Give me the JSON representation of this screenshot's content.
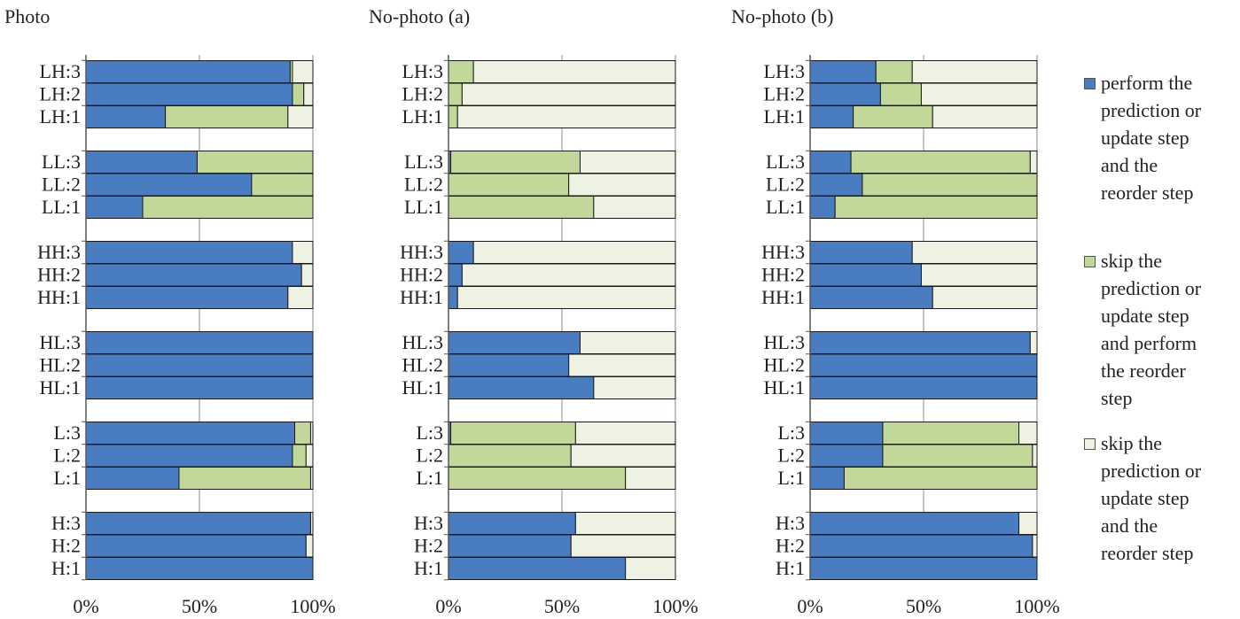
{
  "chart_data": [
    {
      "type": "bar",
      "stacked": true,
      "orientation": "horizontal",
      "title": "Photo",
      "categories": [
        "H:1",
        "H:2",
        "H:3",
        "L:1",
        "L:2",
        "L:3",
        "HL:1",
        "HL:2",
        "HL:3",
        "HH:1",
        "HH:2",
        "HH:3",
        "LL:1",
        "LL:2",
        "LL:3",
        "LH:1",
        "LH:2",
        "LH:3"
      ],
      "series": [
        {
          "name": "perform the prediction or update step and the reorder step",
          "values": [
            100,
            97,
            99,
            41,
            91,
            92,
            100,
            100,
            100,
            89,
            95,
            91,
            25,
            73,
            49,
            35,
            91,
            90
          ]
        },
        {
          "name": "skip the prediction or update step and perform the reorder step",
          "values": [
            0,
            0,
            0,
            58,
            6,
            7,
            0,
            0,
            0,
            0,
            0,
            0,
            75,
            27,
            51,
            54,
            5,
            1
          ]
        },
        {
          "name": "skip  the prediction or update step and the reorder step",
          "values": [
            0,
            3,
            1,
            1,
            3,
            1,
            0,
            0,
            0,
            11,
            5,
            9,
            0,
            0,
            0,
            11,
            4,
            9
          ]
        }
      ],
      "xlim": [
        0,
        100
      ],
      "xticks": [
        "0%",
        "50%",
        "100%"
      ],
      "grid": true
    },
    {
      "type": "bar",
      "stacked": true,
      "orientation": "horizontal",
      "title": "No-photo (a)",
      "categories": [
        "H:1",
        "H:2",
        "H:3",
        "L:1",
        "L:2",
        "L:3",
        "HL:1",
        "HL:2",
        "HL:3",
        "HH:1",
        "HH:2",
        "HH:3",
        "LL:1",
        "LL:2",
        "LL:3",
        "LH:1",
        "LH:2",
        "LH:3"
      ],
      "series": [
        {
          "name": "perform the prediction or update step and the reorder step",
          "values": [
            78,
            54,
            56,
            0,
            0,
            1,
            64,
            53,
            58,
            4,
            6,
            11,
            0,
            0,
            1,
            0,
            0,
            0
          ]
        },
        {
          "name": "skip the prediction or update step and perform the reorder step",
          "values": [
            0,
            0,
            0,
            78,
            54,
            55,
            0,
            0,
            0,
            0,
            0,
            0,
            64,
            53,
            57,
            4,
            6,
            11
          ]
        },
        {
          "name": "skip  the prediction or update step and the reorder step",
          "values": [
            22,
            46,
            44,
            22,
            46,
            44,
            36,
            47,
            42,
            96,
            94,
            89,
            36,
            47,
            42,
            96,
            94,
            89
          ]
        }
      ],
      "xlim": [
        0,
        100
      ],
      "xticks": [
        "0%",
        "50%",
        "100%"
      ],
      "grid": true
    },
    {
      "type": "bar",
      "stacked": true,
      "orientation": "horizontal",
      "title": "No-photo (b)",
      "categories": [
        "H:1",
        "H:2",
        "H:3",
        "L:1",
        "L:2",
        "L:3",
        "HL:1",
        "HL:2",
        "HL:3",
        "HH:1",
        "HH:2",
        "HH:3",
        "LL:1",
        "LL:2",
        "LL:3",
        "LH:1",
        "LH:2",
        "LH:3"
      ],
      "series": [
        {
          "name": "perform the prediction or update step and the reorder step",
          "values": [
            100,
            98,
            92,
            15,
            32,
            32,
            100,
            100,
            97,
            54,
            49,
            45,
            11,
            23,
            18,
            19,
            31,
            29
          ]
        },
        {
          "name": "skip the prediction or update step and perform the reorder step",
          "values": [
            0,
            0,
            0,
            85,
            66,
            60,
            0,
            0,
            0,
            0,
            0,
            0,
            89,
            77,
            79,
            35,
            18,
            16
          ]
        },
        {
          "name": "skip  the prediction or update step and the reorder step",
          "values": [
            0,
            2,
            8,
            0,
            2,
            8,
            0,
            0,
            3,
            46,
            51,
            55,
            0,
            0,
            3,
            46,
            51,
            55
          ]
        }
      ],
      "xlim": [
        0,
        100
      ],
      "xticks": [
        "0%",
        "50%",
        "100%"
      ],
      "grid": true
    }
  ],
  "colors": {
    "perform": "#4A7CC2",
    "skip_perform_reorder": "#C2D89A",
    "skip_both": "#EEF2E3",
    "bar_border": "#1a1a1a",
    "grid": "#8a8a8a",
    "axis": "#555555"
  },
  "legend": [
    {
      "key": "perform",
      "label": "perform the\nprediction or\nupdate step\nand the\nreorder step"
    },
    {
      "key": "skip_perform_reorder",
      "label": "skip the\nprediction or\nupdate step\nand perform\nthe reorder\nstep"
    },
    {
      "key": "skip_both",
      "label": "skip  the\nprediction or\nupdate step\nand the\nreorder step"
    }
  ]
}
